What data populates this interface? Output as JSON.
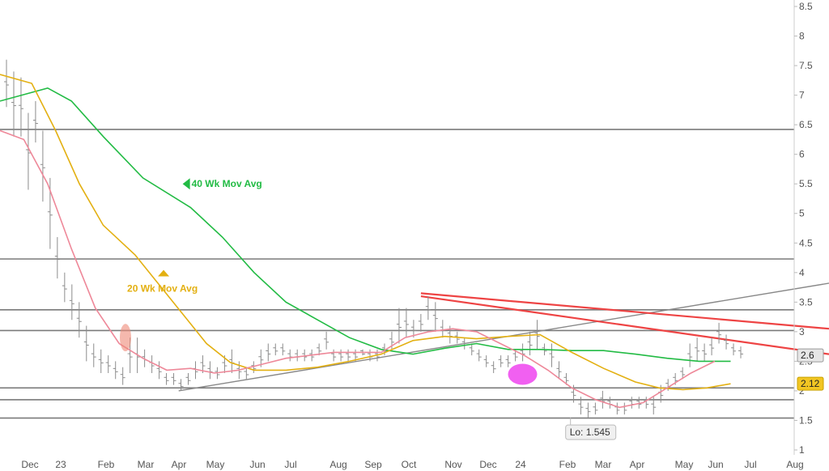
{
  "chart_data": {
    "type": "line",
    "title": "",
    "xlabel": "",
    "ylabel": "",
    "ylim": [
      1,
      8.5
    ],
    "grid": false,
    "y_ticks": [
      "1",
      "1.5",
      "2",
      "2.5",
      "3",
      "3.5",
      "4",
      "4.5",
      "5",
      "5.5",
      "6",
      "6.5",
      "7",
      "7.5",
      "8",
      "8.5"
    ],
    "x_ticks": [
      "Dec",
      "23",
      "Feb",
      "Mar",
      "Apr",
      "May",
      "Jun",
      "Jul",
      "Aug",
      "Sep",
      "Oct",
      "Nov",
      "Dec",
      "24",
      "Feb",
      "Mar",
      "Apr",
      "May",
      "Jun",
      "Jul",
      "Aug"
    ],
    "horizontal_lines": [
      6.42,
      4.23,
      3.37,
      3.02,
      2.05,
      1.85,
      1.54
    ],
    "price_bars": [
      [
        6.8,
        7.6
      ],
      [
        6.3,
        7.4
      ],
      [
        6.3,
        7.3
      ],
      [
        5.4,
        6.7
      ],
      [
        6.2,
        6.9
      ],
      [
        5.2,
        6.4
      ],
      [
        4.4,
        5.6
      ],
      [
        3.9,
        4.6
      ],
      [
        3.5,
        4.0
      ],
      [
        3.2,
        3.8
      ],
      [
        2.9,
        3.5
      ],
      [
        2.5,
        3.1
      ],
      [
        2.4,
        2.8
      ],
      [
        2.3,
        2.7
      ],
      [
        2.3,
        2.6
      ],
      [
        2.2,
        2.5
      ],
      [
        2.1,
        2.4
      ],
      [
        2.3,
        2.9
      ],
      [
        2.3,
        2.9
      ],
      [
        2.4,
        2.7
      ],
      [
        2.3,
        2.6
      ],
      [
        2.2,
        2.5
      ],
      [
        2.1,
        2.3
      ],
      [
        2.1,
        2.3
      ],
      [
        2.0,
        2.2
      ],
      [
        2.1,
        2.3
      ],
      [
        2.2,
        2.5
      ],
      [
        2.3,
        2.6
      ],
      [
        2.2,
        2.5
      ],
      [
        2.2,
        2.4
      ],
      [
        2.3,
        2.6
      ],
      [
        2.3,
        2.7
      ],
      [
        2.2,
        2.5
      ],
      [
        2.2,
        2.4
      ],
      [
        2.3,
        2.5
      ],
      [
        2.4,
        2.7
      ],
      [
        2.5,
        2.8
      ],
      [
        2.6,
        2.8
      ],
      [
        2.6,
        2.8
      ],
      [
        2.5,
        2.7
      ],
      [
        2.5,
        2.7
      ],
      [
        2.5,
        2.7
      ],
      [
        2.5,
        2.7
      ],
      [
        2.6,
        2.8
      ],
      [
        2.7,
        3.0
      ],
      [
        2.5,
        2.7
      ],
      [
        2.5,
        2.7
      ],
      [
        2.5,
        2.7
      ],
      [
        2.5,
        2.7
      ],
      [
        2.6,
        2.7
      ],
      [
        2.5,
        2.7
      ],
      [
        2.5,
        2.7
      ],
      [
        2.6,
        2.8
      ],
      [
        2.7,
        3.0
      ],
      [
        2.8,
        3.4
      ],
      [
        2.9,
        3.4
      ],
      [
        2.9,
        3.2
      ],
      [
        3.0,
        3.3
      ],
      [
        3.2,
        3.6
      ],
      [
        3.0,
        3.5
      ],
      [
        2.9,
        3.2
      ],
      [
        2.8,
        3.1
      ],
      [
        2.8,
        3.0
      ],
      [
        2.7,
        2.9
      ],
      [
        2.6,
        2.8
      ],
      [
        2.5,
        2.7
      ],
      [
        2.4,
        2.6
      ],
      [
        2.3,
        2.5
      ],
      [
        2.4,
        2.6
      ],
      [
        2.4,
        2.6
      ],
      [
        2.5,
        2.7
      ],
      [
        2.5,
        2.8
      ],
      [
        2.6,
        3.0
      ],
      [
        2.7,
        3.2
      ],
      [
        2.6,
        2.8
      ],
      [
        2.4,
        2.8
      ],
      [
        2.2,
        2.5
      ],
      [
        2.1,
        2.3
      ],
      [
        1.8,
        2.1
      ],
      [
        1.6,
        1.9
      ],
      [
        1.55,
        1.8
      ],
      [
        1.6,
        1.8
      ],
      [
        1.7,
        2.0
      ],
      [
        1.7,
        1.9
      ],
      [
        1.6,
        1.8
      ],
      [
        1.6,
        1.8
      ],
      [
        1.7,
        1.9
      ],
      [
        1.7,
        1.9
      ],
      [
        1.7,
        1.9
      ],
      [
        1.6,
        1.9
      ],
      [
        1.8,
        2.1
      ],
      [
        2.0,
        2.2
      ],
      [
        2.1,
        2.3
      ],
      [
        2.2,
        2.4
      ],
      [
        2.4,
        2.8
      ],
      [
        2.5,
        2.9
      ],
      [
        2.5,
        2.8
      ],
      [
        2.6,
        2.9
      ],
      [
        2.8,
        3.15
      ],
      [
        2.7,
        2.95
      ],
      [
        2.6,
        2.8
      ],
      [
        2.55,
        2.75
      ]
    ],
    "series": [
      {
        "name": "40 Wk Mov Avg",
        "color": "#22bb44",
        "points": [
          [
            0.0,
            6.9
          ],
          [
            0.06,
            7.12
          ],
          [
            0.09,
            6.9
          ],
          [
            0.13,
            6.3
          ],
          [
            0.18,
            5.6
          ],
          [
            0.24,
            5.1
          ],
          [
            0.28,
            4.6
          ],
          [
            0.32,
            4.0
          ],
          [
            0.36,
            3.5
          ],
          [
            0.4,
            3.2
          ],
          [
            0.44,
            2.9
          ],
          [
            0.48,
            2.7
          ],
          [
            0.52,
            2.62
          ],
          [
            0.56,
            2.72
          ],
          [
            0.6,
            2.8
          ],
          [
            0.64,
            2.7
          ],
          [
            0.68,
            2.7
          ],
          [
            0.72,
            2.68
          ],
          [
            0.76,
            2.68
          ],
          [
            0.8,
            2.62
          ],
          [
            0.84,
            2.55
          ],
          [
            0.88,
            2.5
          ],
          [
            0.92,
            2.5
          ]
        ]
      },
      {
        "name": "20 Wk Mov Avg",
        "color": "#e3b012",
        "points": [
          [
            0.0,
            7.35
          ],
          [
            0.04,
            7.2
          ],
          [
            0.07,
            6.4
          ],
          [
            0.1,
            5.5
          ],
          [
            0.13,
            4.8
          ],
          [
            0.17,
            4.3
          ],
          [
            0.2,
            3.8
          ],
          [
            0.23,
            3.3
          ],
          [
            0.26,
            2.8
          ],
          [
            0.29,
            2.48
          ],
          [
            0.32,
            2.35
          ],
          [
            0.36,
            2.35
          ],
          [
            0.4,
            2.4
          ],
          [
            0.44,
            2.5
          ],
          [
            0.48,
            2.62
          ],
          [
            0.52,
            2.85
          ],
          [
            0.56,
            2.92
          ],
          [
            0.6,
            2.88
          ],
          [
            0.64,
            2.92
          ],
          [
            0.68,
            2.95
          ],
          [
            0.72,
            2.65
          ],
          [
            0.76,
            2.38
          ],
          [
            0.8,
            2.15
          ],
          [
            0.83,
            2.05
          ],
          [
            0.86,
            2.02
          ],
          [
            0.89,
            2.05
          ],
          [
            0.92,
            2.12
          ]
        ]
      },
      {
        "name": "",
        "color": "#ee8899",
        "points": [
          [
            0.0,
            6.4
          ],
          [
            0.03,
            6.25
          ],
          [
            0.06,
            5.5
          ],
          [
            0.09,
            4.4
          ],
          [
            0.12,
            3.4
          ],
          [
            0.15,
            2.8
          ],
          [
            0.18,
            2.55
          ],
          [
            0.21,
            2.35
          ],
          [
            0.24,
            2.38
          ],
          [
            0.27,
            2.3
          ],
          [
            0.3,
            2.35
          ],
          [
            0.33,
            2.45
          ],
          [
            0.36,
            2.55
          ],
          [
            0.39,
            2.6
          ],
          [
            0.42,
            2.65
          ],
          [
            0.45,
            2.65
          ],
          [
            0.48,
            2.65
          ],
          [
            0.51,
            2.9
          ],
          [
            0.54,
            3.0
          ],
          [
            0.57,
            3.05
          ],
          [
            0.6,
            3.0
          ],
          [
            0.63,
            2.8
          ],
          [
            0.66,
            2.6
          ],
          [
            0.69,
            2.35
          ],
          [
            0.72,
            2.05
          ],
          [
            0.75,
            1.85
          ],
          [
            0.78,
            1.72
          ],
          [
            0.81,
            1.8
          ],
          [
            0.84,
            2.05
          ],
          [
            0.87,
            2.3
          ],
          [
            0.9,
            2.5
          ]
        ]
      }
    ],
    "trendlines": [
      {
        "name": "support",
        "color": "#888888",
        "from": [
          0.225,
          2.0
        ],
        "to": [
          1.0,
          3.82
        ]
      },
      {
        "name": "resistance-upper",
        "color": "#ee4444",
        "from": [
          0.53,
          3.65
        ],
        "to": [
          1.0,
          3.05
        ]
      },
      {
        "name": "resistance-lower",
        "color": "#ee4444",
        "from": [
          0.53,
          3.6
        ],
        "to": [
          1.0,
          2.62
        ]
      }
    ],
    "annotations": [
      {
        "text": "40 Wk Mov Avg",
        "color": "#22bb44",
        "value": 5.5,
        "pos": 0.23
      },
      {
        "text": "20 Wk Mov Avg",
        "color": "#e3b012",
        "value": 3.73,
        "pos": 0.155
      },
      {
        "text": "Lo: 1.545",
        "color": "#333333",
        "value": 1.545,
        "pos": 0.7
      }
    ],
    "highlight_markers": [
      {
        "shape": "ellipse",
        "color": "#ee8877",
        "value": 2.9,
        "pos": 0.158
      },
      {
        "shape": "ellipse",
        "color": "#ee44ee",
        "value": 2.28,
        "pos": 0.658
      }
    ],
    "last_value_badges": [
      {
        "text": "2.6",
        "value": 2.6,
        "bg": "#e6e6e6"
      },
      {
        "text": "2.12",
        "value": 2.12,
        "bg": "#f2c623"
      }
    ]
  }
}
